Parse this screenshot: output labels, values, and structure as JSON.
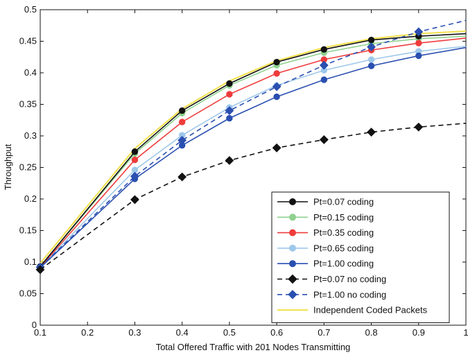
{
  "chart_data": {
    "type": "line",
    "xlabel": "Total Offered Traffic with 201 Nodes Transmitting",
    "ylabel": "Throughput",
    "xlim": [
      0.1,
      1.0
    ],
    "ylim": [
      0,
      0.5
    ],
    "x_ticks": [
      "0.1",
      "0.2",
      "0.3",
      "0.4",
      "0.5",
      "0.6",
      "0.7",
      "0.8",
      "0.9",
      "1"
    ],
    "y_ticks": [
      "0",
      "0.05",
      "0.1",
      "0.15",
      "0.2",
      "0.25",
      "0.3",
      "0.35",
      "0.4",
      "0.45",
      "0.5"
    ],
    "grid": false,
    "legend_position": "lower-right",
    "x": [
      0.1,
      0.3,
      0.4,
      0.5,
      0.6,
      0.7,
      0.8,
      0.9,
      1.0
    ],
    "series": [
      {
        "name": "Pt=0.07 coding",
        "color": "#111111",
        "dash": "solid",
        "marker": "circle",
        "values": [
          0.093,
          0.275,
          0.34,
          0.383,
          0.417,
          0.437,
          0.452,
          0.458,
          0.462
        ]
      },
      {
        "name": "Pt=0.15 coding",
        "color": "#8fd18f",
        "dash": "solid",
        "marker": "circle",
        "values": [
          0.093,
          0.272,
          0.336,
          0.38,
          0.412,
          0.432,
          0.446,
          0.454,
          0.458
        ]
      },
      {
        "name": "Pt=0.35 coding",
        "color": "#ef3b3b",
        "dash": "solid",
        "marker": "circle",
        "values": [
          0.092,
          0.262,
          0.322,
          0.366,
          0.399,
          0.421,
          0.436,
          0.447,
          0.455
        ]
      },
      {
        "name": "Pt=0.65 coding",
        "color": "#9ec8ea",
        "dash": "solid",
        "marker": "circle",
        "values": [
          0.092,
          0.246,
          0.301,
          0.345,
          0.38,
          0.404,
          0.421,
          0.434,
          0.442
        ]
      },
      {
        "name": "Pt=1.00 coding",
        "color": "#2a4fb0",
        "dash": "solid",
        "marker": "circle",
        "values": [
          0.091,
          0.232,
          0.285,
          0.328,
          0.362,
          0.389,
          0.411,
          0.427,
          0.44
        ]
      },
      {
        "name": "Pt=0.07 no coding",
        "color": "#111111",
        "dash": "dashed",
        "marker": "diamond",
        "values": [
          0.088,
          0.199,
          0.235,
          0.261,
          0.281,
          0.294,
          0.306,
          0.314,
          0.32
        ]
      },
      {
        "name": "Pt=1.00 no coding",
        "color": "#2a4fb0",
        "dash": "dashed",
        "marker": "diamond",
        "values": [
          0.092,
          0.236,
          0.293,
          0.34,
          0.378,
          0.412,
          0.441,
          0.465,
          0.483
        ]
      },
      {
        "name": "Independent Coded Packets",
        "color": "#f2e04a",
        "dash": "solid",
        "marker": "none",
        "values": [
          0.098,
          0.28,
          0.343,
          0.387,
          0.419,
          0.44,
          0.454,
          0.462,
          0.466
        ]
      }
    ]
  }
}
